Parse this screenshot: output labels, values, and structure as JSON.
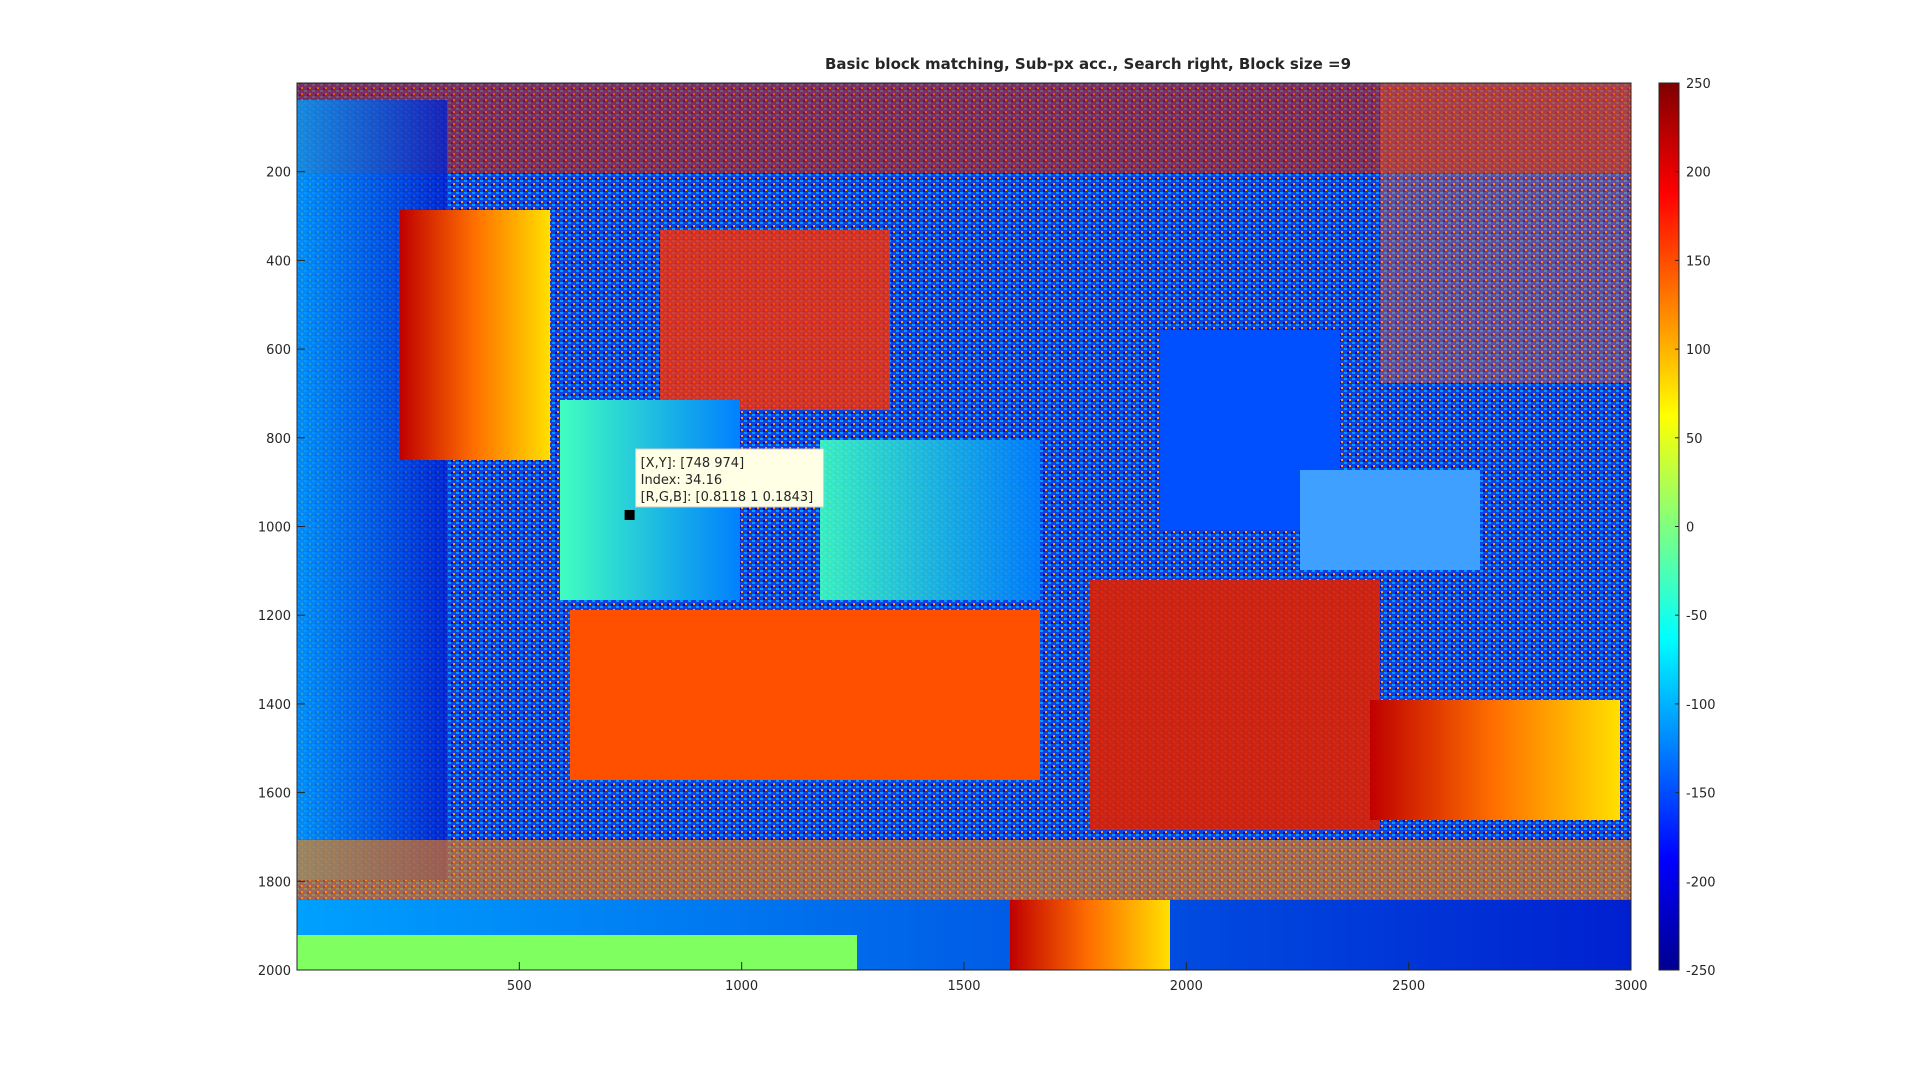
{
  "chart_data": {
    "type": "image",
    "title": "Basic block matching, Sub-px acc., Search right, Block size =9",
    "xlim": [
      0,
      3000
    ],
    "xticks": [
      500,
      1000,
      1500,
      2000,
      2500,
      3000
    ],
    "ylim": [
      0,
      2000
    ],
    "yticks": [
      200,
      400,
      600,
      800,
      1000,
      1200,
      1400,
      1600,
      1800,
      2000
    ],
    "y_reversed": true,
    "colorbar": {
      "clim": [
        -250,
        250
      ],
      "ticks": [
        -250,
        -200,
        -150,
        -100,
        -50,
        0,
        50,
        100,
        150,
        200,
        250
      ]
    },
    "datatip": {
      "x": 748,
      "y": 974,
      "lines": [
        "[X,Y]: [748 974]",
        "Index: 34.16",
        "[R,G,B]: [0.8118 1 0.1843]"
      ]
    }
  }
}
